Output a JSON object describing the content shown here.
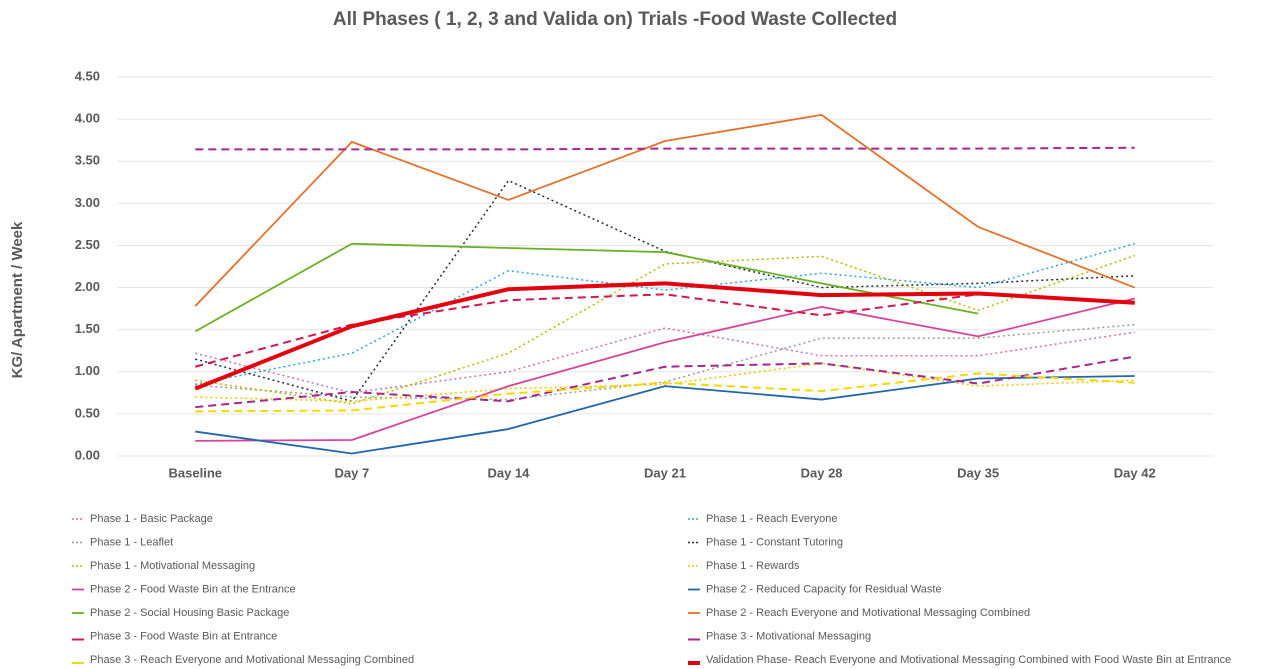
{
  "chart_data": {
    "type": "line",
    "title": "All Phases ( 1, 2, 3 and Valida on) Trials -Food Waste Collected",
    "y_label": "KG/ Apartment / Week",
    "categories": [
      "Baseline",
      "Day 7",
      "Day 14",
      "Day 21",
      "Day 28",
      "Day 35",
      "Day 42"
    ],
    "ylim": [
      0,
      4.5
    ],
    "yticks": [
      {
        "value": 0,
        "label": "0.00"
      },
      {
        "value": 0.5,
        "label": "0.50"
      },
      {
        "value": 1,
        "label": "1.00"
      },
      {
        "value": 1.5,
        "label": "1.50"
      },
      {
        "value": 2,
        "label": "2.00"
      },
      {
        "value": 2.5,
        "label": "2.50"
      },
      {
        "value": 3,
        "label": "3.00"
      },
      {
        "value": 3.5,
        "label": "3.50"
      },
      {
        "value": 4,
        "label": "4.00"
      },
      {
        "value": 4.5,
        "label": "4.50"
      }
    ],
    "grid": true,
    "series": [
      {
        "name": "Phase 1 - Basic Package",
        "color": "#d66fa6",
        "dash": "dot",
        "width": 1.5,
        "values": [
          1.22,
          0.75,
          1.0,
          1.52,
          1.19,
          1.19,
          1.47
        ]
      },
      {
        "name": "Phase 1 - Reach Everyone",
        "color": "#2ea6d6",
        "dash": "dot",
        "width": 1.5,
        "values": [
          0.85,
          1.22,
          2.2,
          1.97,
          2.17,
          2.0,
          2.52
        ]
      },
      {
        "name": "Phase 1 - Leaflet",
        "color": "#9a9a9a",
        "dash": "dot",
        "width": 1.5,
        "values": [
          0.84,
          0.7,
          0.67,
          0.88,
          1.4,
          1.4,
          1.56
        ]
      },
      {
        "name": "Phase 1 - Constant Tutoring",
        "color": "#1f2a44",
        "dash": "dot",
        "width": 1.5,
        "values": [
          1.15,
          0.65,
          3.27,
          2.43,
          2.0,
          2.05,
          2.14
        ]
      },
      {
        "name": "Phase 1 - Motivational Messaging",
        "color": "#b5b800",
        "dash": "dot",
        "width": 1.5,
        "values": [
          0.9,
          0.62,
          1.22,
          2.28,
          2.37,
          1.73,
          2.38
        ]
      },
      {
        "name": "Phase 1 - Rewards",
        "color": "#f2c500",
        "dash": "dot",
        "width": 1.5,
        "values": [
          0.7,
          0.65,
          0.8,
          0.85,
          1.1,
          0.83,
          0.9
        ]
      },
      {
        "name": "Phase 2 - Food Waste Bin at the Entrance",
        "color": "#d6449a",
        "dash": "solid",
        "width": 1.8,
        "values": [
          0.18,
          0.19,
          0.83,
          1.35,
          1.77,
          1.42,
          1.87
        ]
      },
      {
        "name": "Phase 2 - Reduced Capacity for Residual Waste",
        "color": "#2166ac",
        "dash": "solid",
        "width": 1.8,
        "values": [
          0.29,
          0.03,
          0.32,
          0.83,
          0.67,
          0.92,
          0.95
        ]
      },
      {
        "name": "Phase 2 - Social Housing Basic Package",
        "color": "#6ab023",
        "dash": "solid",
        "width": 1.8,
        "values": [
          1.48,
          2.52,
          2.47,
          2.42,
          2.05,
          1.69,
          null
        ]
      },
      {
        "name": "Phase 2 - Reach Everyone and Motivational Messaging Combined",
        "color": "#e5702a",
        "dash": "solid",
        "width": 1.8,
        "values": [
          1.78,
          3.73,
          3.04,
          3.74,
          4.05,
          2.72,
          2.0
        ]
      },
      {
        "name": "Phase 3 - Food Waste Bin at Entrance",
        "color": "#d1194f",
        "dash": "dash",
        "width": 2,
        "values": [
          1.06,
          1.56,
          1.85,
          1.92,
          1.67,
          1.92,
          1.83
        ]
      },
      {
        "name": "Phase 3 - Motivational Messaging",
        "color": "#a3278f",
        "dash": "dash",
        "width": 2,
        "values": [
          0.58,
          0.76,
          0.65,
          1.06,
          1.1,
          0.86,
          1.18
        ]
      },
      {
        "name": "Phase 3 - Reach Everyone and Motivational Messaging Combined",
        "color": "#f5d800",
        "dash": "dash",
        "width": 2,
        "values": [
          0.53,
          0.54,
          0.74,
          0.87,
          0.77,
          0.98,
          0.87
        ]
      },
      {
        "name": "Validation Phase- Reach Everyone and Motivational Messaging Combined with Food Waste Bin at Entrance",
        "color": "#e3000f",
        "dash": "solid",
        "width": 4,
        "values": [
          0.8,
          1.54,
          1.98,
          2.05,
          1.91,
          1.93,
          1.82
        ]
      },
      {
        "color": "#a3278f",
        "dash": "dash",
        "width": 2,
        "values": [
          3.64,
          3.64,
          3.64,
          3.65,
          3.65,
          3.65,
          3.66
        ]
      }
    ]
  }
}
